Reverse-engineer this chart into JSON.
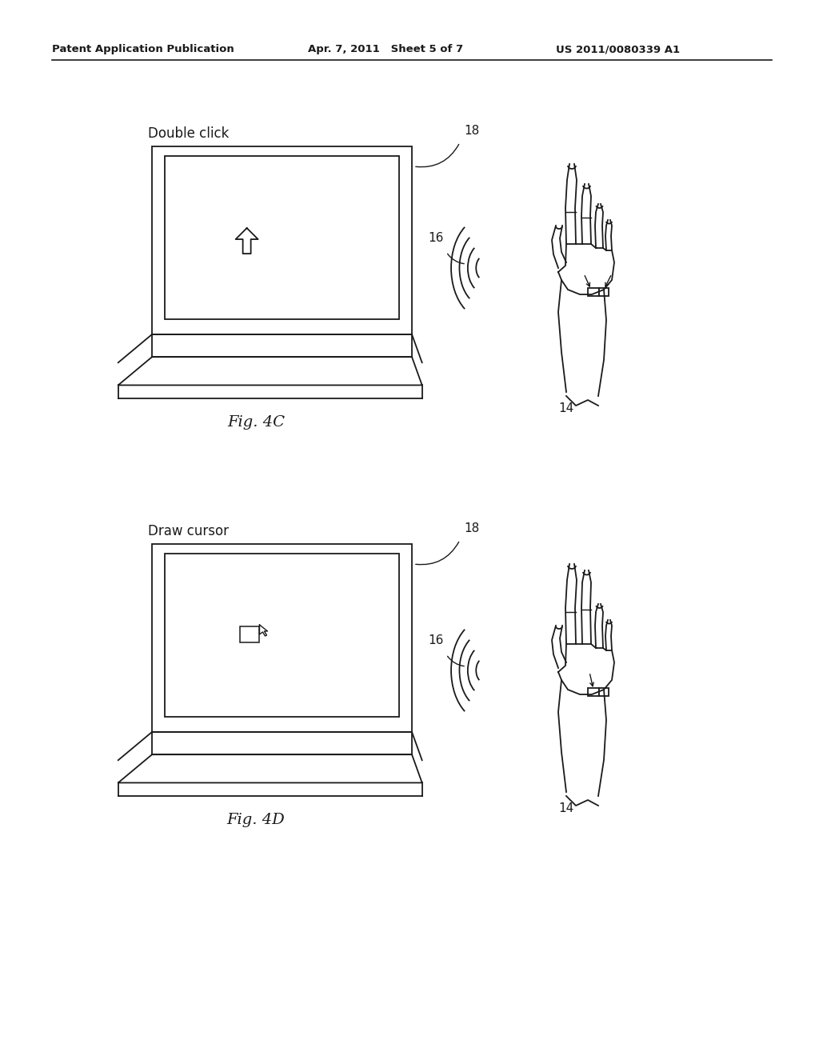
{
  "bg_color": "#ffffff",
  "header_left": "Patent Application Publication",
  "header_mid": "Apr. 7, 2011   Sheet 5 of 7",
  "header_right": "US 2011/0080339 A1",
  "fig4c_label": "Double click",
  "fig4c_caption": "Fig. 4C",
  "fig4d_label": "Draw cursor",
  "fig4d_caption": "Fig. 4D",
  "lw": 1.3,
  "col": "#1a1a1a"
}
